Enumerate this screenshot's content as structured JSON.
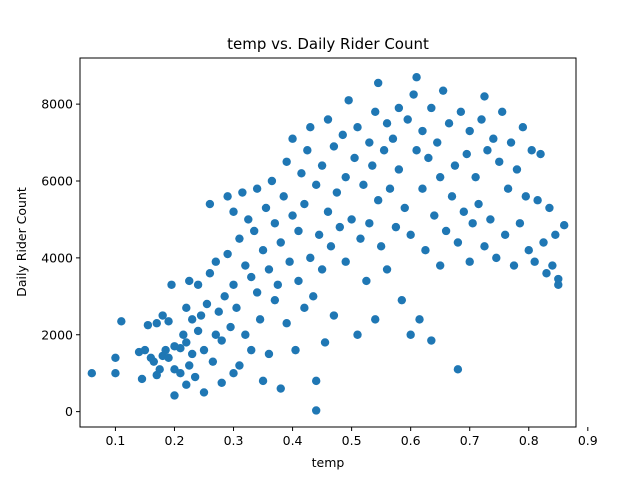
{
  "colors": {
    "point": "#1f77b4",
    "axis": "#000000",
    "background": "#ffffff"
  },
  "chart_data": {
    "type": "scatter",
    "title": "temp vs. Daily Rider Count",
    "xlabel": "temp",
    "ylabel": "Daily Rider Count",
    "xlim": [
      0.04,
      0.88
    ],
    "ylim": [
      -400,
      9200
    ],
    "xticks": [
      0.1,
      0.2,
      0.3,
      0.4,
      0.5,
      0.6,
      0.7,
      0.8,
      0.9
    ],
    "xtick_labels": [
      "0.1",
      "0.2",
      "0.3",
      "0.4",
      "0.5",
      "0.6",
      "0.7",
      "0.8",
      "0.9"
    ],
    "yticks": [
      0,
      2000,
      4000,
      6000,
      8000
    ],
    "ytick_labels": [
      "0",
      "2000",
      "4000",
      "6000",
      "8000"
    ],
    "grid": false,
    "legend": "none",
    "series": [
      {
        "name": "temp",
        "points": [
          [
            0.06,
            1000
          ],
          [
            0.1,
            1400
          ],
          [
            0.1,
            1000
          ],
          [
            0.11,
            2350
          ],
          [
            0.14,
            1550
          ],
          [
            0.145,
            850
          ],
          [
            0.15,
            1600
          ],
          [
            0.155,
            2250
          ],
          [
            0.16,
            1400
          ],
          [
            0.165,
            1300
          ],
          [
            0.17,
            2300
          ],
          [
            0.17,
            950
          ],
          [
            0.175,
            1100
          ],
          [
            0.18,
            1450
          ],
          [
            0.18,
            2500
          ],
          [
            0.185,
            1600
          ],
          [
            0.19,
            2350
          ],
          [
            0.19,
            1400
          ],
          [
            0.195,
            3300
          ],
          [
            0.2,
            1700
          ],
          [
            0.2,
            1100
          ],
          [
            0.2,
            420
          ],
          [
            0.21,
            1650
          ],
          [
            0.21,
            1000
          ],
          [
            0.215,
            2000
          ],
          [
            0.22,
            1800
          ],
          [
            0.22,
            700
          ],
          [
            0.22,
            2700
          ],
          [
            0.225,
            3400
          ],
          [
            0.225,
            1200
          ],
          [
            0.23,
            1500
          ],
          [
            0.23,
            2400
          ],
          [
            0.235,
            900
          ],
          [
            0.24,
            2100
          ],
          [
            0.24,
            3300
          ],
          [
            0.245,
            2500
          ],
          [
            0.25,
            500
          ],
          [
            0.25,
            1600
          ],
          [
            0.255,
            2800
          ],
          [
            0.26,
            3600
          ],
          [
            0.26,
            5400
          ],
          [
            0.265,
            1300
          ],
          [
            0.27,
            2000
          ],
          [
            0.27,
            3900
          ],
          [
            0.275,
            2600
          ],
          [
            0.28,
            750
          ],
          [
            0.28,
            1850
          ],
          [
            0.285,
            3000
          ],
          [
            0.29,
            5600
          ],
          [
            0.29,
            4100
          ],
          [
            0.295,
            2200
          ],
          [
            0.3,
            1000
          ],
          [
            0.3,
            3300
          ],
          [
            0.3,
            5200
          ],
          [
            0.305,
            2700
          ],
          [
            0.31,
            4500
          ],
          [
            0.31,
            1200
          ],
          [
            0.315,
            5700
          ],
          [
            0.32,
            3800
          ],
          [
            0.32,
            2000
          ],
          [
            0.325,
            5000
          ],
          [
            0.33,
            3500
          ],
          [
            0.33,
            1600
          ],
          [
            0.335,
            4700
          ],
          [
            0.34,
            3100
          ],
          [
            0.34,
            5800
          ],
          [
            0.345,
            2400
          ],
          [
            0.35,
            4200
          ],
          [
            0.35,
            800
          ],
          [
            0.355,
            5300
          ],
          [
            0.36,
            3700
          ],
          [
            0.36,
            1500
          ],
          [
            0.365,
            6000
          ],
          [
            0.37,
            2900
          ],
          [
            0.37,
            4900
          ],
          [
            0.375,
            3300
          ],
          [
            0.38,
            600
          ],
          [
            0.38,
            4400
          ],
          [
            0.385,
            5600
          ],
          [
            0.39,
            2300
          ],
          [
            0.39,
            6500
          ],
          [
            0.395,
            3900
          ],
          [
            0.4,
            5100
          ],
          [
            0.4,
            7100
          ],
          [
            0.405,
            1600
          ],
          [
            0.41,
            4700
          ],
          [
            0.41,
            3400
          ],
          [
            0.415,
            6200
          ],
          [
            0.42,
            2700
          ],
          [
            0.42,
            5400
          ],
          [
            0.425,
            6800
          ],
          [
            0.43,
            4000
          ],
          [
            0.43,
            7400
          ],
          [
            0.435,
            3000
          ],
          [
            0.44,
            5900
          ],
          [
            0.44,
            800
          ],
          [
            0.44,
            30
          ],
          [
            0.445,
            4600
          ],
          [
            0.45,
            6400
          ],
          [
            0.45,
            3700
          ],
          [
            0.455,
            1800
          ],
          [
            0.46,
            5200
          ],
          [
            0.46,
            7600
          ],
          [
            0.465,
            4300
          ],
          [
            0.47,
            6900
          ],
          [
            0.47,
            2500
          ],
          [
            0.475,
            5700
          ],
          [
            0.48,
            4800
          ],
          [
            0.485,
            7200
          ],
          [
            0.49,
            3900
          ],
          [
            0.49,
            6100
          ],
          [
            0.495,
            8100
          ],
          [
            0.5,
            5000
          ],
          [
            0.505,
            6600
          ],
          [
            0.51,
            2000
          ],
          [
            0.51,
            7400
          ],
          [
            0.515,
            4500
          ],
          [
            0.52,
            5900
          ],
          [
            0.525,
            3400
          ],
          [
            0.53,
            7000
          ],
          [
            0.53,
            4900
          ],
          [
            0.535,
            6400
          ],
          [
            0.54,
            7800
          ],
          [
            0.54,
            2400
          ],
          [
            0.545,
            5500
          ],
          [
            0.545,
            8550
          ],
          [
            0.55,
            4300
          ],
          [
            0.555,
            6800
          ],
          [
            0.56,
            7500
          ],
          [
            0.56,
            3700
          ],
          [
            0.565,
            5800
          ],
          [
            0.57,
            7100
          ],
          [
            0.575,
            4800
          ],
          [
            0.58,
            6300
          ],
          [
            0.58,
            7900
          ],
          [
            0.585,
            2900
          ],
          [
            0.59,
            5300
          ],
          [
            0.595,
            7600
          ],
          [
            0.6,
            2000
          ],
          [
            0.6,
            4600
          ],
          [
            0.605,
            8250
          ],
          [
            0.61,
            6800
          ],
          [
            0.61,
            8700
          ],
          [
            0.615,
            2400
          ],
          [
            0.62,
            5800
          ],
          [
            0.62,
            7300
          ],
          [
            0.625,
            4200
          ],
          [
            0.63,
            6600
          ],
          [
            0.635,
            1850
          ],
          [
            0.635,
            7900
          ],
          [
            0.64,
            5100
          ],
          [
            0.645,
            7000
          ],
          [
            0.65,
            3800
          ],
          [
            0.65,
            6100
          ],
          [
            0.655,
            8350
          ],
          [
            0.66,
            4700
          ],
          [
            0.665,
            7500
          ],
          [
            0.67,
            5600
          ],
          [
            0.675,
            6400
          ],
          [
            0.68,
            1100
          ],
          [
            0.68,
            4400
          ],
          [
            0.685,
            7800
          ],
          [
            0.69,
            5200
          ],
          [
            0.695,
            6700
          ],
          [
            0.7,
            3900
          ],
          [
            0.7,
            7300
          ],
          [
            0.705,
            4900
          ],
          [
            0.71,
            6100
          ],
          [
            0.715,
            5400
          ],
          [
            0.72,
            7600
          ],
          [
            0.725,
            8200
          ],
          [
            0.725,
            4300
          ],
          [
            0.73,
            6800
          ],
          [
            0.735,
            5000
          ],
          [
            0.74,
            7100
          ],
          [
            0.745,
            4000
          ],
          [
            0.75,
            6500
          ],
          [
            0.755,
            7800
          ],
          [
            0.76,
            4600
          ],
          [
            0.765,
            5800
          ],
          [
            0.77,
            7000
          ],
          [
            0.775,
            3800
          ],
          [
            0.78,
            6300
          ],
          [
            0.785,
            4900
          ],
          [
            0.79,
            7400
          ],
          [
            0.795,
            5600
          ],
          [
            0.8,
            4200
          ],
          [
            0.805,
            6800
          ],
          [
            0.81,
            3900
          ],
          [
            0.815,
            5500
          ],
          [
            0.82,
            6700
          ],
          [
            0.825,
            4400
          ],
          [
            0.83,
            3600
          ],
          [
            0.835,
            5300
          ],
          [
            0.84,
            3800
          ],
          [
            0.845,
            4600
          ],
          [
            0.85,
            3300
          ],
          [
            0.85,
            3450
          ],
          [
            0.86,
            4850
          ]
        ]
      }
    ]
  }
}
